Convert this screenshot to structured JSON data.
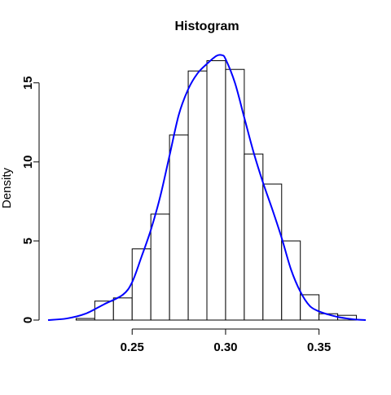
{
  "chart_data": {
    "type": "bar",
    "title": "Histogram",
    "xlabel": "",
    "ylabel": "Density",
    "xlim": [
      0.205,
      0.375
    ],
    "ylim": [
      0,
      17.2
    ],
    "x_ticks": [
      "0.25",
      "0.30",
      "0.35"
    ],
    "x_tick_values": [
      0.25,
      0.3,
      0.35
    ],
    "y_ticks": [
      "0",
      "5",
      "10",
      "15"
    ],
    "y_tick_values": [
      0,
      5,
      10,
      15
    ],
    "bin_edges": [
      0.22,
      0.23,
      0.24,
      0.25,
      0.26,
      0.27,
      0.28,
      0.29,
      0.3,
      0.31,
      0.32,
      0.33,
      0.34,
      0.35,
      0.36,
      0.37
    ],
    "values": [
      0.1,
      1.2,
      1.4,
      4.5,
      6.7,
      11.7,
      15.75,
      16.4,
      15.85,
      10.5,
      8.6,
      5.0,
      1.6,
      0.4,
      0.3
    ],
    "series": [
      {
        "name": "",
        "type": "line",
        "color": "#0000ff",
        "x": [
          0.205,
          0.215,
          0.225,
          0.235,
          0.245,
          0.25,
          0.255,
          0.26,
          0.265,
          0.27,
          0.275,
          0.28,
          0.285,
          0.29,
          0.295,
          0.298,
          0.3,
          0.305,
          0.31,
          0.315,
          0.32,
          0.325,
          0.33,
          0.335,
          0.34,
          0.345,
          0.35,
          0.355,
          0.36,
          0.365,
          0.37,
          0.375
        ],
        "y": [
          0.0,
          0.1,
          0.4,
          1.0,
          1.6,
          2.4,
          4.0,
          5.7,
          7.8,
          10.4,
          13.0,
          14.6,
          15.6,
          16.2,
          16.7,
          16.75,
          16.5,
          15.0,
          12.8,
          10.6,
          8.7,
          7.0,
          5.2,
          3.2,
          1.8,
          0.9,
          0.55,
          0.35,
          0.2,
          0.1,
          0.03,
          0.0
        ]
      }
    ],
    "bar_fill": "#ffffff",
    "bar_stroke": "#000000",
    "grid": false,
    "legend": "none"
  }
}
